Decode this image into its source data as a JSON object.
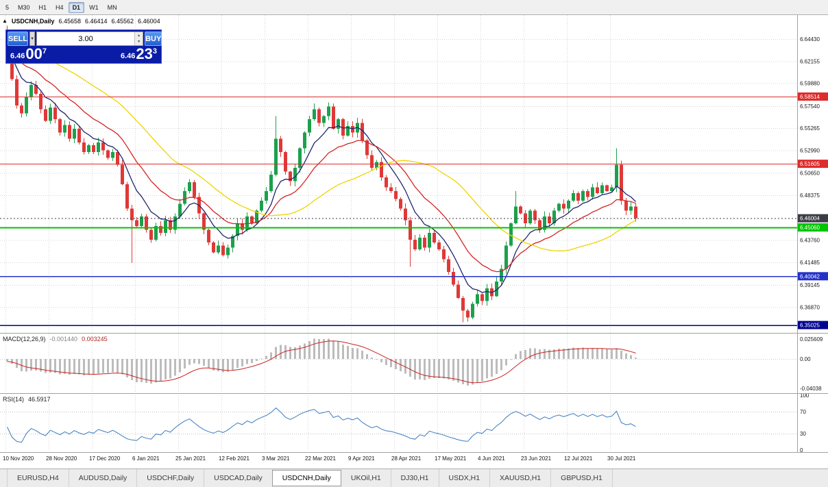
{
  "toolbar": {
    "items": [
      "5",
      "M30",
      "H1",
      "H4",
      "D1",
      "W1",
      "MN"
    ],
    "active": "D1"
  },
  "info": {
    "symbol": "USDCNH,Daily",
    "open": "6.45658",
    "high": "6.46414",
    "low": "6.45562",
    "close": "6.46004"
  },
  "trade_panel": {
    "sell_label": "SELL",
    "buy_label": "BUY",
    "volume": "3.00",
    "sell_price": {
      "small": "6.46",
      "big": "00",
      "sup": "7"
    },
    "buy_price": {
      "small": "6.46",
      "big": "23",
      "sup": "3"
    }
  },
  "price_axis": {
    "ticks": [
      "6.64430",
      "6.62155",
      "6.59880",
      "6.57540",
      "6.55265",
      "6.52990",
      "6.50650",
      "6.48375",
      "6.43760",
      "6.41485",
      "6.39145",
      "6.36870"
    ]
  },
  "hlines": [
    {
      "label": "6.58514",
      "price": 6.58514,
      "color": "#dd2c2c",
      "width": 1,
      "dash": ""
    },
    {
      "label": "6.51605",
      "price": 6.51605,
      "color": "#dd2c2c",
      "width": 1,
      "dash": ""
    },
    {
      "label": "6.46004",
      "price": 6.46004,
      "color": "#3c3c46",
      "width": 1,
      "dash": "2,3",
      "is_current": true
    },
    {
      "label": "6.45060",
      "price": 6.4506,
      "color": "#00c400",
      "width": 2,
      "dash": ""
    },
    {
      "label": "6.40042",
      "price": 6.40042,
      "color": "#2432c8",
      "width": 1.5,
      "dash": ""
    },
    {
      "label": "6.35025",
      "price": 6.35025,
      "color": "#000090",
      "width": 1.5,
      "dash": ""
    }
  ],
  "chart_data": {
    "type": "candlestick",
    "symbol": "USDCNH",
    "timeframe": "Daily",
    "title": "USDCNH,Daily",
    "ohlc_display": {
      "open": 6.45658,
      "high": 6.46414,
      "low": 6.45562,
      "close": 6.46004
    },
    "current_price": 6.46004,
    "ylim": [
      6.34,
      6.67
    ],
    "x_labels": [
      "10 Nov 2020",
      "28 Nov 2020",
      "17 Dec 2020",
      "6 Jan 2021",
      "25 Jan 2021",
      "12 Feb 2021",
      "3 Mar 2021",
      "22 Mar 2021",
      "9 Apr 2021",
      "28 Apr 2021",
      "17 May 2021",
      "4 Jun 2021",
      "23 Jun 2021",
      "12 Jul 2021",
      "30 Jul 2021"
    ],
    "candles_per_label": 9,
    "first_open": 6.645,
    "closes": [
      6.63,
      6.603,
      6.576,
      6.568,
      6.585,
      6.597,
      6.588,
      6.572,
      6.56,
      6.574,
      6.562,
      6.548,
      6.556,
      6.542,
      6.552,
      6.538,
      6.528,
      6.535,
      6.528,
      6.538,
      6.53,
      6.522,
      6.528,
      6.515,
      6.495,
      6.47,
      6.458,
      6.452,
      6.462,
      6.448,
      6.438,
      6.452,
      6.445,
      6.458,
      6.448,
      6.462,
      6.475,
      6.488,
      6.497,
      6.482,
      6.465,
      6.448,
      6.435,
      6.425,
      6.432,
      6.422,
      6.43,
      6.442,
      6.455,
      6.448,
      6.462,
      6.455,
      6.468,
      6.478,
      6.488,
      6.505,
      6.542,
      6.528,
      6.508,
      6.498,
      6.512,
      6.532,
      6.548,
      6.562,
      6.572,
      6.558,
      6.565,
      6.575,
      6.552,
      6.562,
      6.545,
      6.555,
      6.548,
      6.558,
      6.54,
      6.525,
      6.512,
      6.518,
      6.502,
      6.492,
      6.488,
      6.48,
      6.47,
      6.458,
      6.438,
      6.428,
      6.44,
      6.43,
      6.445,
      6.435,
      6.428,
      6.418,
      6.405,
      6.392,
      6.378,
      6.365,
      6.358,
      6.372,
      6.382,
      6.375,
      6.388,
      6.38,
      6.395,
      6.408,
      6.432,
      6.455,
      6.472,
      6.465,
      6.455,
      6.468,
      6.458,
      6.448,
      6.462,
      6.455,
      6.468,
      6.475,
      6.47,
      6.478,
      6.486,
      6.478,
      6.488,
      6.482,
      6.492,
      6.486,
      6.494,
      6.488,
      6.492,
      6.515,
      6.478,
      6.468,
      6.472,
      6.46004
    ],
    "wick_overrides": {
      "0": {
        "high": 6.658
      },
      "26": {
        "low": 6.414
      },
      "56": {
        "high": 6.565
      },
      "64": {
        "high": 6.578
      },
      "67": {
        "high": 6.579
      },
      "84": {
        "low": 6.41
      },
      "95": {
        "low": 6.353
      },
      "106": {
        "high": 6.488
      },
      "127": {
        "high": 6.532
      }
    },
    "moving_averages": [
      {
        "period": 8,
        "type": "ema",
        "color": "#20246e"
      },
      {
        "period": 18,
        "type": "ema",
        "color": "#d42424"
      },
      {
        "period": 34,
        "type": "sma",
        "color": "#eed400"
      }
    ],
    "up_color": "#1ca04c",
    "down_color": "#e03838"
  },
  "macd": {
    "name": "MACD(12,26,9)",
    "main_value": "-0.001440",
    "signal_value": "0.003245",
    "axis": [
      "0.025609",
      "0.00",
      "-0.04038"
    ],
    "histo_color": "#bcbcbc",
    "line_color": "#cc2020"
  },
  "rsi": {
    "name": "RSI(14)",
    "value": "46.5917",
    "axis": [
      100,
      70,
      30,
      0
    ],
    "levels": [
      70,
      30
    ],
    "color": "#3a7abf"
  },
  "tabs": {
    "items": [
      "EURUSD,H4",
      "AUDUSD,Daily",
      "USDCHF,Daily",
      "USDCAD,Daily",
      "USDCNH,Daily",
      "UKOil,H1",
      "DJ30,H1",
      "USDX,H1",
      "XAUUSD,H1",
      "GBPUSD,H1"
    ],
    "active": "USDCNH,Daily"
  }
}
